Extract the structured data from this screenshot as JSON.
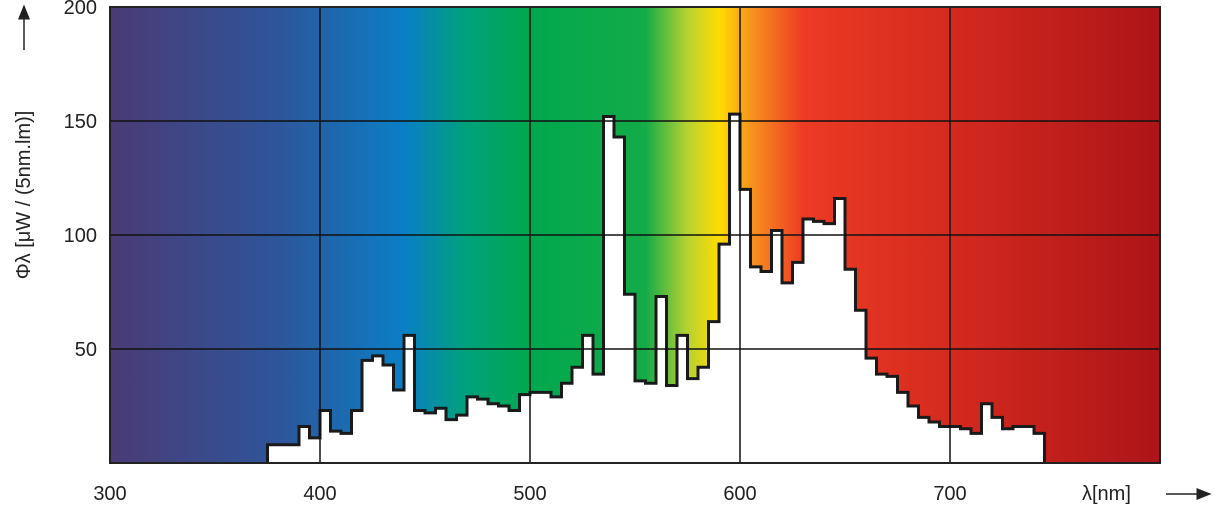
{
  "chart_data": {
    "type": "bar",
    "style": "stepped histogram (white fill) over visible-spectrum colored background",
    "xlabel": "λ[nm]",
    "ylabel": "Φλ [μW / (5nm.lm)]",
    "xlim": [
      300,
      800
    ],
    "ylim": [
      0,
      200
    ],
    "x_ticks": [
      "300",
      "400",
      "500",
      "600",
      "700"
    ],
    "y_ticks": [
      "50",
      "100",
      "150",
      "200"
    ],
    "grid": true,
    "bin_start": 375,
    "bin_width": 5,
    "values": [
      8,
      8,
      8,
      16,
      11,
      23,
      14,
      13,
      23,
      45,
      47,
      43,
      32,
      56,
      23,
      22,
      24,
      19,
      21,
      29,
      28,
      26,
      25,
      23,
      30,
      31,
      31,
      29,
      35,
      42,
      56,
      39,
      152,
      143,
      74,
      36,
      35,
      73,
      34,
      56,
      37,
      42,
      62,
      96,
      153,
      120,
      86,
      84,
      102,
      79,
      88,
      107,
      106,
      105,
      116,
      85,
      67,
      46,
      39,
      38,
      31,
      25,
      20,
      18,
      16,
      16,
      15,
      13,
      26,
      20,
      15,
      16,
      16,
      13
    ],
    "background_spectrum_colors": [
      {
        "nm": 300,
        "color": "#4a3b75"
      },
      {
        "nm": 380,
        "color": "#2e559a"
      },
      {
        "nm": 440,
        "color": "#0a7fc6"
      },
      {
        "nm": 470,
        "color": "#00a27a"
      },
      {
        "nm": 500,
        "color": "#00a84e"
      },
      {
        "nm": 555,
        "color": "#14ab48"
      },
      {
        "nm": 575,
        "color": "#b7d232"
      },
      {
        "nm": 590,
        "color": "#ffdc00"
      },
      {
        "nm": 605,
        "color": "#f7941d"
      },
      {
        "nm": 630,
        "color": "#ed3b24"
      },
      {
        "nm": 700,
        "color": "#d42a1f"
      },
      {
        "nm": 800,
        "color": "#ad1418"
      }
    ]
  }
}
